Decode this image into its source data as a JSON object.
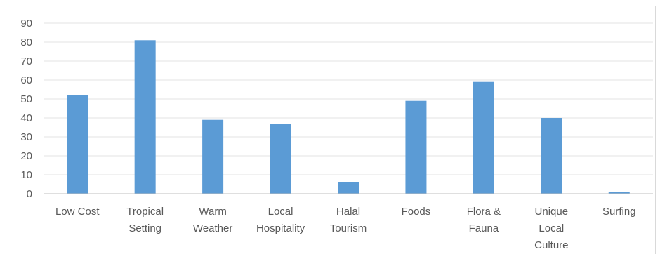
{
  "chart_data": {
    "type": "bar",
    "title": "",
    "xlabel": "",
    "ylabel": "",
    "ylim": [
      0,
      90
    ],
    "yticks": [
      0,
      10,
      20,
      30,
      40,
      50,
      60,
      70,
      80,
      90
    ],
    "grid": true,
    "legend": "none",
    "bar_color": "#5b9bd5",
    "categories": [
      [
        "Low Cost"
      ],
      [
        "Tropical",
        "Setting"
      ],
      [
        "Warm",
        "Weather"
      ],
      [
        "Local",
        "Hospitality"
      ],
      [
        "Halal",
        "Tourism"
      ],
      [
        "Foods"
      ],
      [
        "Flora &",
        "Fauna"
      ],
      [
        "Unique",
        "Local",
        "Culture"
      ],
      [
        "Surfing"
      ]
    ],
    "values": [
      52,
      81,
      39,
      37,
      6,
      49,
      59,
      40,
      1
    ]
  }
}
